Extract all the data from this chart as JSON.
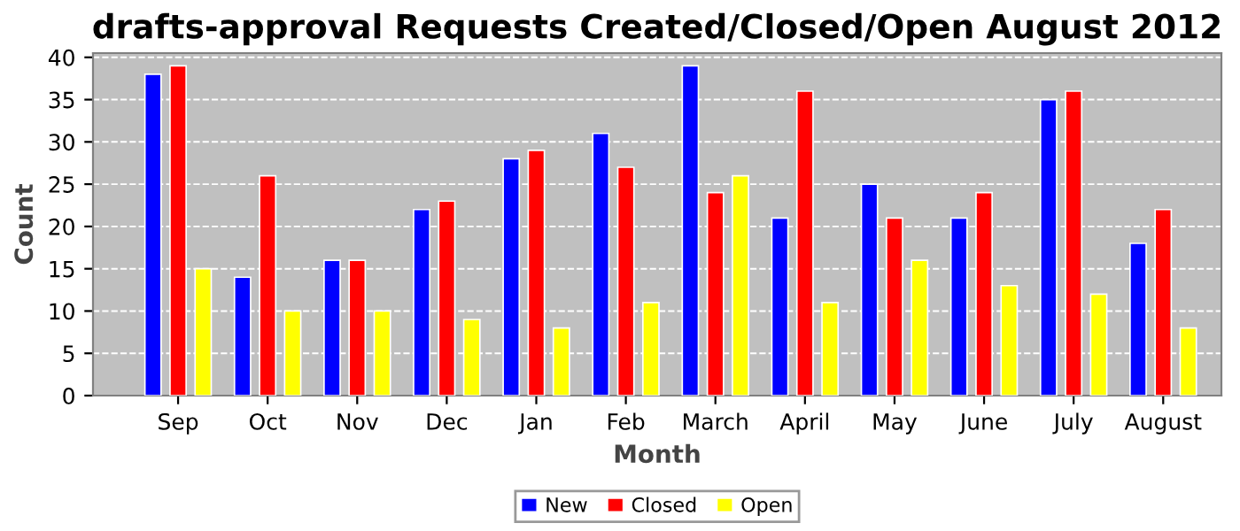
{
  "chart_data": {
    "type": "bar",
    "title": "drafts-approval Requests Created/Closed/Open August 2012",
    "xlabel": "Month",
    "ylabel": "Count",
    "categories": [
      "Sep",
      "Oct",
      "Nov",
      "Dec",
      "Jan",
      "Feb",
      "March",
      "April",
      "May",
      "June",
      "July",
      "August"
    ],
    "series": [
      {
        "name": "New",
        "color": "#0000ff",
        "values": [
          38,
          14,
          16,
          22,
          28,
          31,
          39,
          21,
          25,
          21,
          35,
          18
        ]
      },
      {
        "name": "Closed",
        "color": "#ff0000",
        "values": [
          39,
          26,
          16,
          23,
          29,
          27,
          24,
          36,
          21,
          24,
          36,
          22
        ]
      },
      {
        "name": "Open",
        "color": "#ffff00",
        "values": [
          15,
          10,
          10,
          9,
          8,
          11,
          26,
          11,
          16,
          13,
          12,
          8
        ]
      }
    ],
    "ylim": [
      0,
      40.5
    ],
    "yticks": [
      0,
      5,
      10,
      15,
      20,
      25,
      30,
      35,
      40
    ],
    "grid": "y",
    "legend": "bottom"
  }
}
